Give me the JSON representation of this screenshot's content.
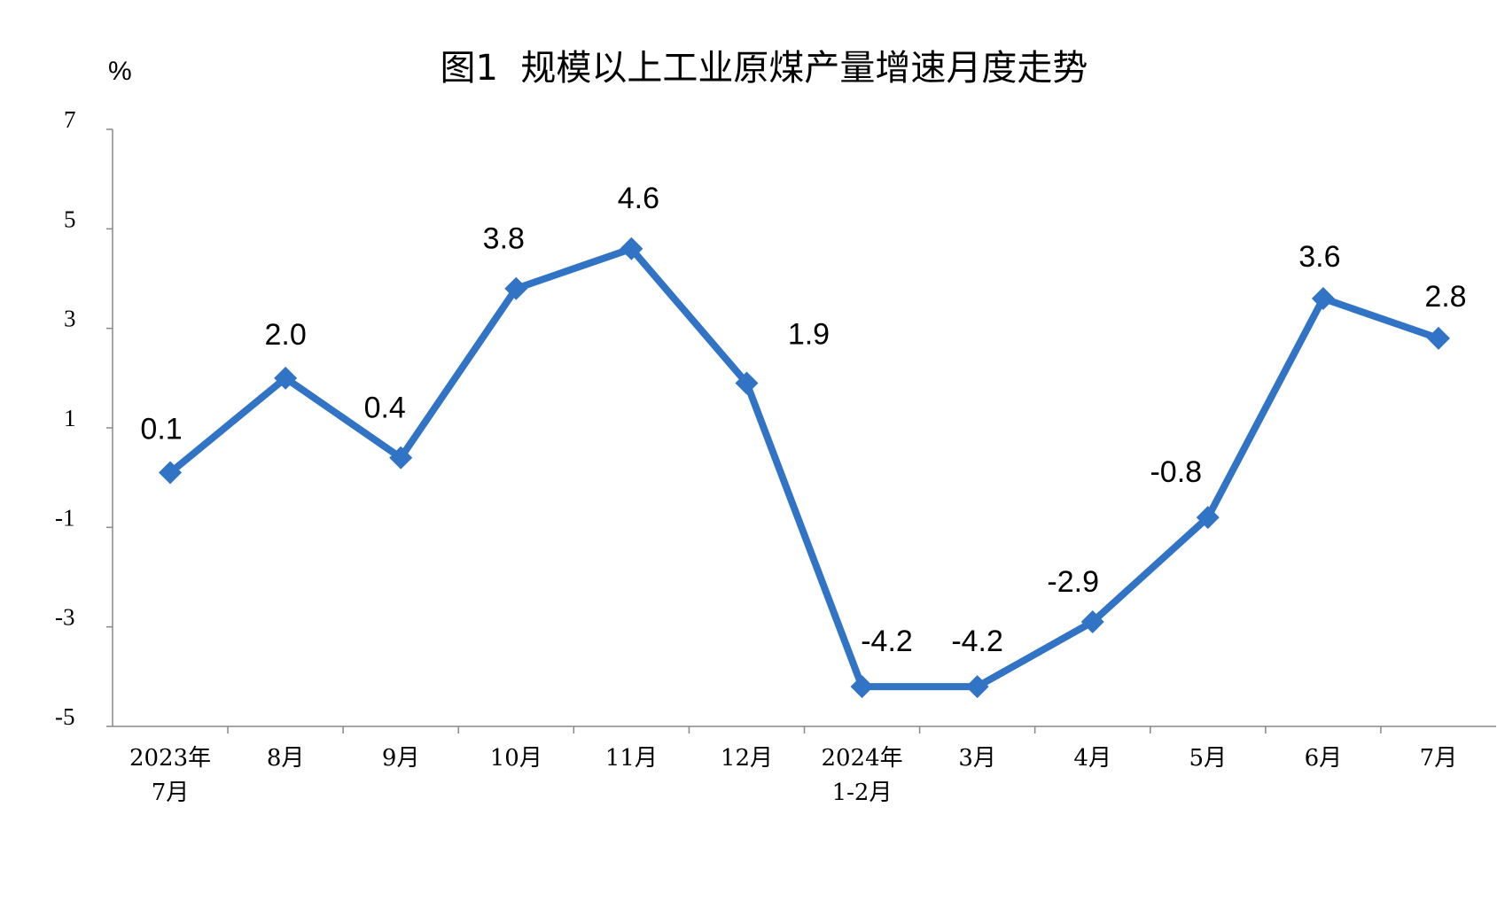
{
  "chart_data": {
    "type": "line",
    "title": "图1  规模以上工业原煤产量增速月度走势",
    "ylabel": "%",
    "xlabel": "",
    "categories": [
      [
        "2023年",
        "7月"
      ],
      [
        "8月"
      ],
      [
        "9月"
      ],
      [
        "10月"
      ],
      [
        "11月"
      ],
      [
        "12月"
      ],
      [
        "2024年",
        "1-2月"
      ],
      [
        "3月"
      ],
      [
        "4月"
      ],
      [
        "5月"
      ],
      [
        "6月"
      ],
      [
        "7月"
      ]
    ],
    "series": [
      {
        "values": [
          0.1,
          2.0,
          0.4,
          3.8,
          4.6,
          1.9,
          -4.2,
          -4.2,
          -2.9,
          -0.8,
          3.6,
          2.8
        ],
        "labels": [
          "0.1",
          "2.0",
          "0.4",
          "3.8",
          "4.6",
          "1.9",
          "-4.2",
          "-4.2",
          "-2.9",
          "-0.8",
          "3.6",
          "2.8"
        ],
        "color": "#3173C4",
        "marker": "diamond"
      }
    ],
    "ylim": [
      -5,
      7
    ],
    "yticks": [
      "7",
      "5",
      "3",
      "1",
      "-1",
      "-3",
      "-5"
    ],
    "grid": false,
    "legend": "none"
  }
}
